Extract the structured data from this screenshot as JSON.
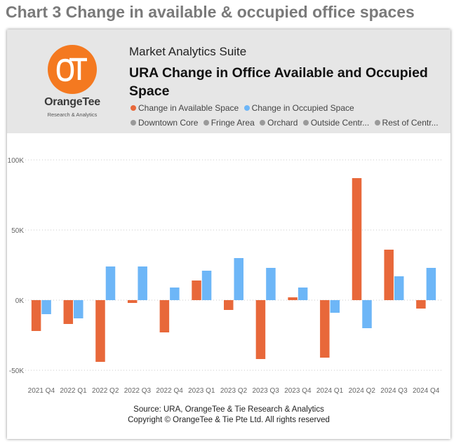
{
  "page_title": "Chart 3 Change in available & occupied office spaces",
  "header": {
    "logo_name": "OrangeTee",
    "logo_sub": "Research & Analytics",
    "suite": "Market Analytics Suite",
    "title": "URA Change in Office Available and Occupied Space"
  },
  "legend": {
    "measures": [
      {
        "label": "Change in Available Space",
        "color": "#e8683a"
      },
      {
        "label": "Change in Occupied Space",
        "color": "#6db6f7"
      }
    ],
    "regions": [
      {
        "label": "Downtown Core",
        "color": "#9a9a9a"
      },
      {
        "label": "Fringe Area",
        "color": "#9a9a9a"
      },
      {
        "label": "Orchard",
        "color": "#9a9a9a"
      },
      {
        "label": "Outside Centr...",
        "color": "#9a9a9a"
      },
      {
        "label": "Rest of Centr...",
        "color": "#9a9a9a"
      }
    ]
  },
  "chart_data": {
    "type": "bar",
    "categories": [
      "2021 Q4",
      "2022 Q1",
      "2022 Q2",
      "2022 Q3",
      "2022 Q4",
      "2023 Q1",
      "2023 Q2",
      "2023 Q3",
      "2023 Q4",
      "2024 Q1",
      "2024 Q2",
      "2024 Q3",
      "2024 Q4"
    ],
    "series": [
      {
        "name": "Change in Available Space",
        "color": "#e8683a",
        "values": [
          -22000,
          -17000,
          -44000,
          -2000,
          -23000,
          14000,
          -7000,
          -42000,
          2000,
          -41000,
          87000,
          36000,
          -6000
        ]
      },
      {
        "name": "Change in Occupied Space",
        "color": "#6db6f7",
        "values": [
          -10000,
          -13000,
          24000,
          24000,
          9000,
          21000,
          30000,
          23000,
          9000,
          -9000,
          -20000,
          17000,
          23000
        ]
      }
    ],
    "yticks": [
      {
        "value": 100000,
        "label": "100K"
      },
      {
        "value": 50000,
        "label": "50K"
      },
      {
        "value": 0,
        "label": "0K"
      },
      {
        "value": -50000,
        "label": "-50K"
      }
    ],
    "ylim": [
      -50000,
      100000
    ],
    "grid": true,
    "legend_position": "top"
  },
  "footer": {
    "source": "Source: URA, OrangeTee & Tie Research & Analytics",
    "copyright": "Copyright © OrangeTee & Tie Pte Ltd. All rights reserved"
  }
}
